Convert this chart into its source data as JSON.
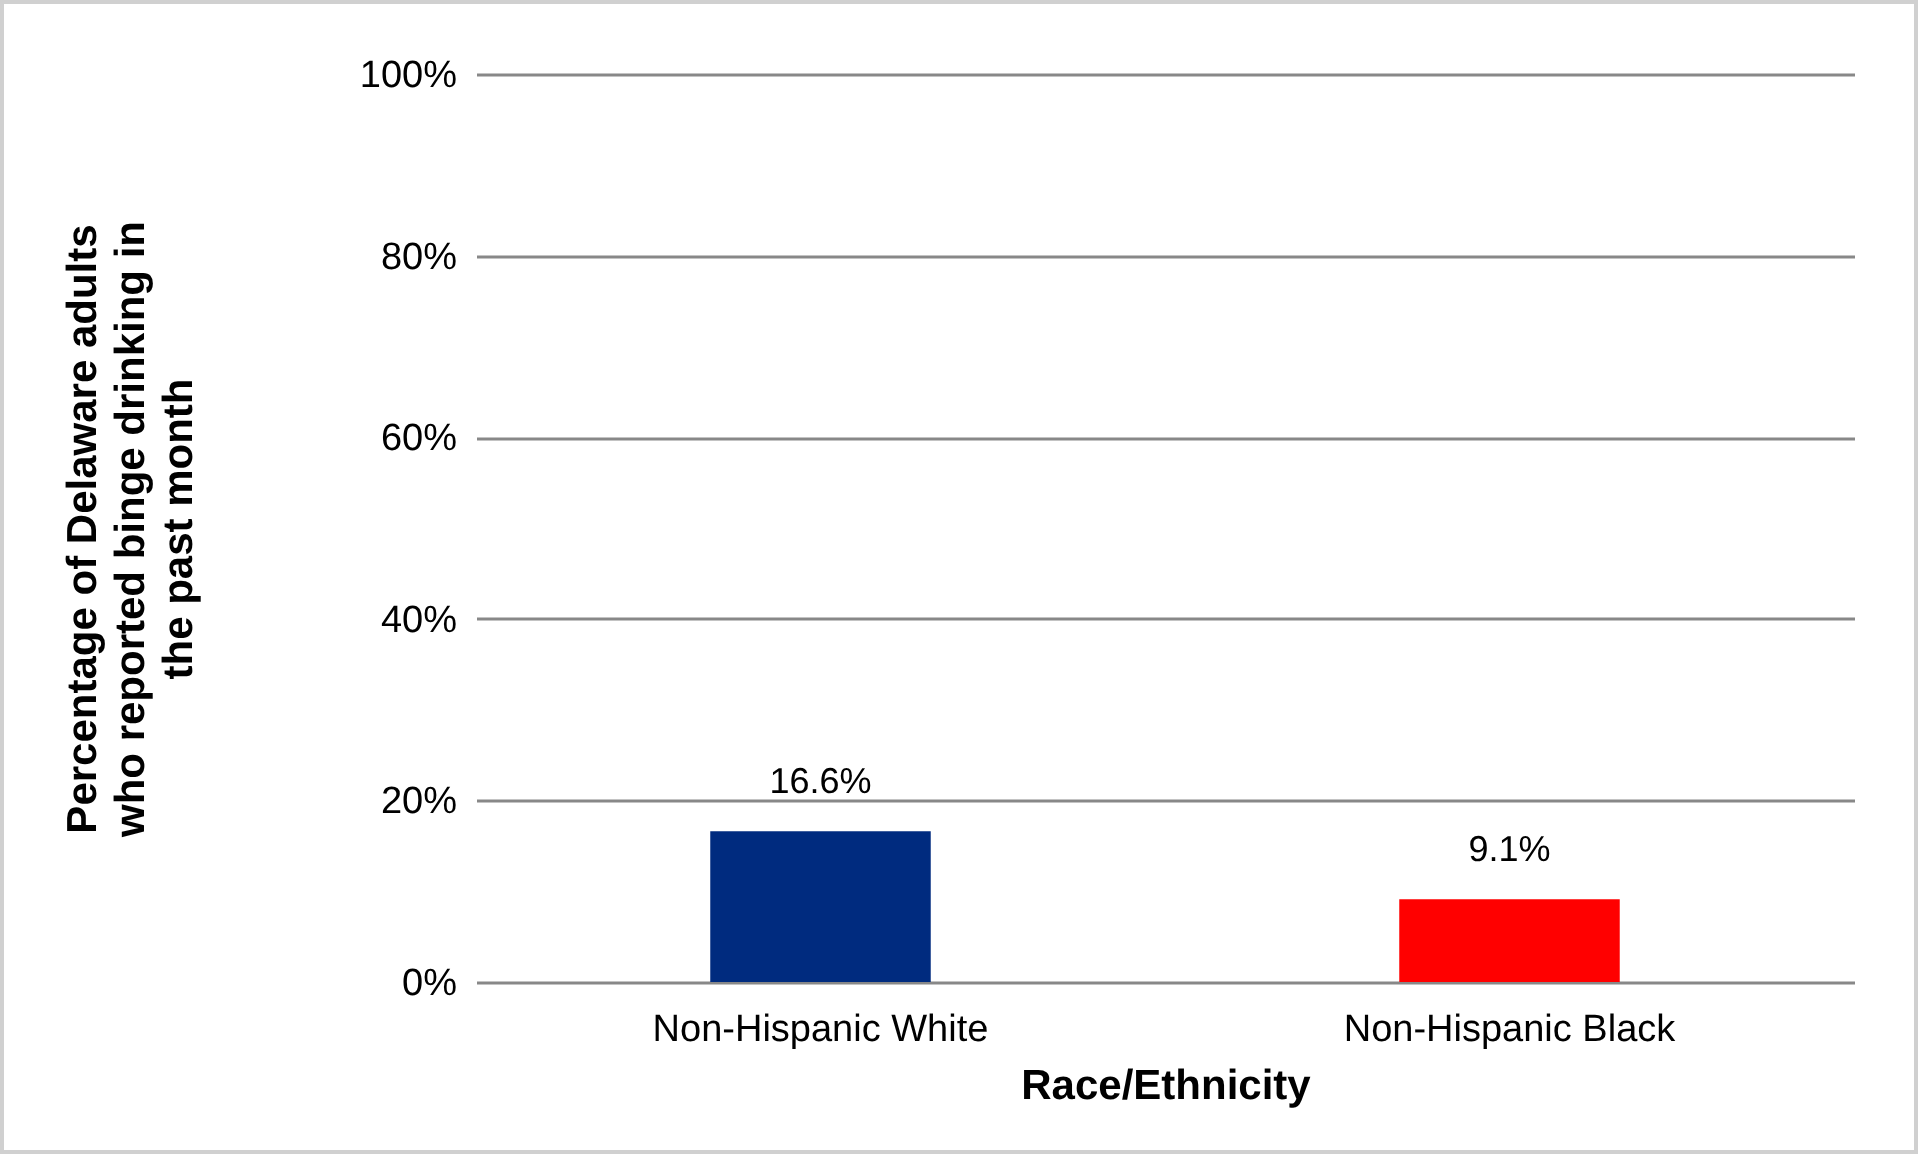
{
  "chart_data": {
    "type": "bar",
    "xlabel": "Race/Ethnicity",
    "ylabel": "Percentage of Delaware adults who reported binge drinking in the past month",
    "categories": [
      "Non-Hispanic White",
      "Non-Hispanic Black"
    ],
    "values": [
      16.6,
      9.1
    ],
    "colors": [
      "#002b7f",
      "#ff0000"
    ],
    "value_labels": [
      "16.6%",
      "9.1%"
    ],
    "ylim": [
      0,
      100
    ],
    "yticks": [
      {
        "value": 0,
        "label": "0%"
      },
      {
        "value": 20,
        "label": "20%"
      },
      {
        "value": 40,
        "label": "40%"
      },
      {
        "value": 60,
        "label": "60%"
      },
      {
        "value": 80,
        "label": "80%"
      },
      {
        "value": 100,
        "label": "100%"
      }
    ],
    "grid": "y"
  }
}
